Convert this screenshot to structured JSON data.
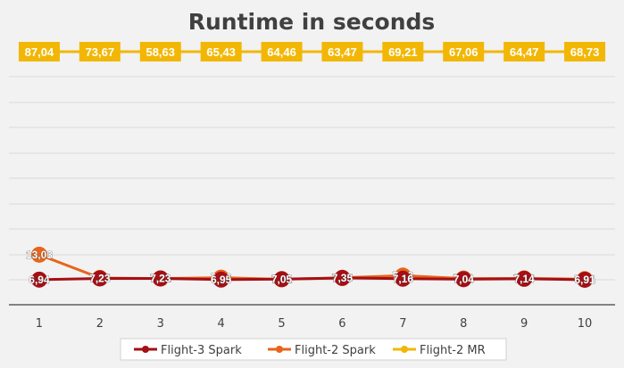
{
  "chart_data": {
    "type": "line",
    "title": "Runtime in seconds",
    "categories": [
      "1",
      "2",
      "3",
      "4",
      "5",
      "6",
      "7",
      "8",
      "9",
      "10"
    ],
    "ylim": [
      0,
      100
    ],
    "grid": true,
    "legend_position": "bottom",
    "series": [
      {
        "name": "Flight-3 Spark",
        "color": "#a50f15",
        "values": [
          6.94,
          7.23,
          7.23,
          6.95,
          7.05,
          7.35,
          7.16,
          7.04,
          7.14,
          6.91
        ],
        "labels": [
          "6,94",
          "7,23",
          "7,23",
          "6,95",
          "7,05",
          "7,35",
          "7,16",
          "7,04",
          "7,14",
          "6,91"
        ]
      },
      {
        "name": "Flight-2 Spark",
        "color": "#e8641b",
        "values": [
          13.03,
          7.35,
          7.21,
          7.43,
          7.01,
          7.38,
          7.93,
          7.21,
          7.23,
          7.06
        ],
        "labels": [
          "13,03",
          "7,35",
          "7,21",
          "7,43",
          "7,01",
          "7,38",
          "7,93",
          "7,21",
          "7,23",
          "7,06"
        ]
      },
      {
        "name": "Flight-2 MR",
        "color": "#f2b705",
        "values": [
          87.04,
          73.67,
          58.63,
          65.43,
          64.46,
          63.47,
          69.21,
          67.06,
          64.47,
          68.73
        ],
        "labels": [
          "87,04",
          "73,67",
          "58,63",
          "65,43",
          "64,46",
          "63,47",
          "69,21",
          "67,06",
          "64,47",
          "68,73"
        ]
      }
    ]
  }
}
